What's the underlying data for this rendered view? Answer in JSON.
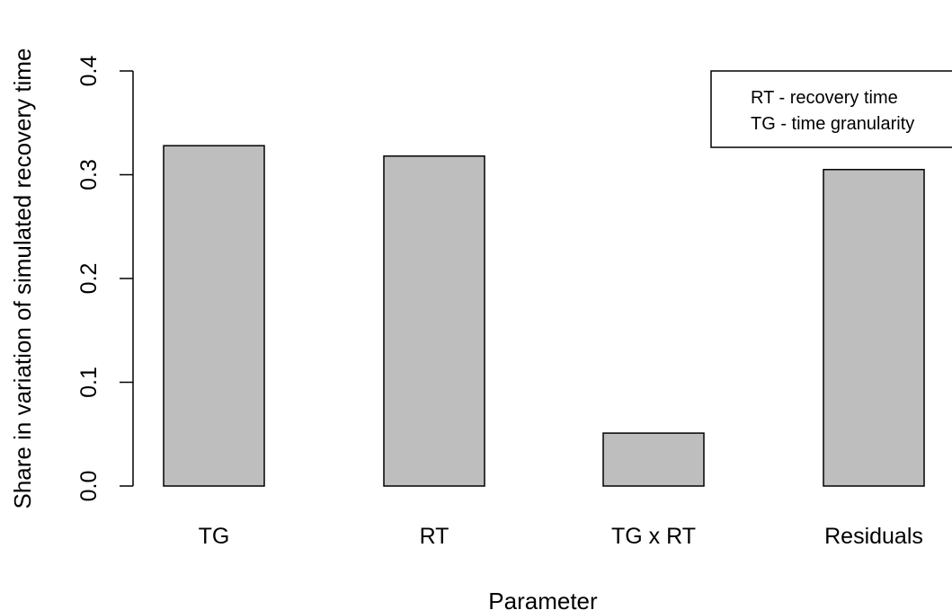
{
  "chart_data": {
    "type": "bar",
    "categories": [
      "TG",
      "RT",
      "TG x RT",
      "Residuals"
    ],
    "values": [
      0.328,
      0.318,
      0.051,
      0.305
    ],
    "xlabel": "Parameter",
    "ylabel": "Share in variation of simulated recovery time",
    "ylim": [
      0,
      0.4
    ],
    "yticks": [
      "0.0",
      "0.1",
      "0.2",
      "0.3",
      "0.4"
    ],
    "bar_color": "#bebebe",
    "legend": {
      "position": "top-right",
      "entries": [
        "RT - recovery time",
        "TG - time granularity"
      ]
    }
  }
}
